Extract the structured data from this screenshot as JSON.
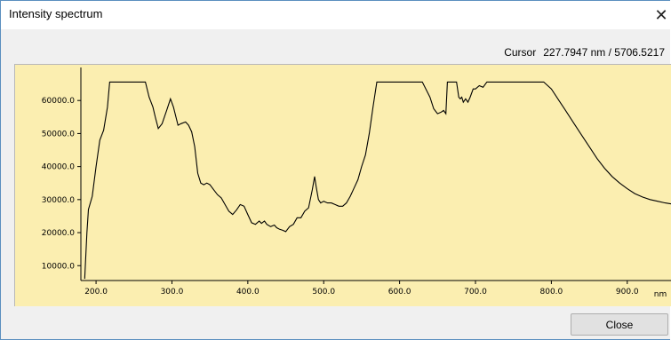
{
  "window": {
    "title": "Intensity spectrum",
    "close_icon": "close-icon",
    "close_glyph": "✕"
  },
  "cursor": {
    "label": "Cursor",
    "value": "227.7947 nm / 5706.5217"
  },
  "buttons": {
    "close_label": "Close"
  },
  "colors": {
    "plot_background": "#fbeeb0",
    "line": "#000000"
  },
  "chart_data": {
    "type": "line",
    "title": "",
    "xlabel": "nm",
    "ylabel": "",
    "xlim": [
      180,
      960
    ],
    "ylim": [
      5500,
      70000
    ],
    "x_ticks": [
      "200.0",
      "300.0",
      "400.0",
      "500.0",
      "600.0",
      "700.0",
      "800.0",
      "900.0"
    ],
    "y_ticks": [
      "10000.0",
      "20000.0",
      "30000.0",
      "40000.0",
      "50000.0",
      "60000.0"
    ],
    "grid": false,
    "series": [
      {
        "x": [
          185,
          188,
          190,
          195,
          200,
          205,
          210,
          215,
          218,
          222,
          230,
          240,
          250,
          260,
          265,
          270,
          275,
          278,
          282,
          287,
          293,
          298,
          302,
          308,
          312,
          318,
          322,
          326,
          330,
          334,
          338,
          342,
          346,
          350,
          355,
          360,
          365,
          370,
          375,
          380,
          385,
          390,
          395,
          400,
          405,
          410,
          415,
          418,
          422,
          425,
          430,
          435,
          438,
          442,
          446,
          450,
          455,
          460,
          465,
          470,
          475,
          480,
          485,
          488,
          490,
          493,
          496,
          500,
          505,
          510,
          515,
          520,
          525,
          530,
          535,
          540,
          545,
          550,
          555,
          560,
          565,
          570,
          575,
          580,
          590,
          600,
          610,
          620,
          630,
          640,
          645,
          650,
          655,
          658,
          661,
          663,
          665,
          670,
          675,
          678,
          680,
          682,
          684,
          687,
          690,
          693,
          697,
          700,
          705,
          710,
          715,
          720,
          730,
          740,
          750,
          760,
          770,
          780,
          790,
          800,
          810,
          820,
          830,
          840,
          850,
          860,
          870,
          880,
          890,
          900,
          910,
          920,
          930,
          940,
          950,
          958
        ],
        "y": [
          6000,
          20000,
          27000,
          31000,
          40000,
          48000,
          51000,
          58000,
          65600,
          65600,
          65600,
          65600,
          65600,
          65600,
          65600,
          61000,
          58000,
          55000,
          51500,
          53000,
          57000,
          60500,
          58000,
          52500,
          53000,
          53500,
          52500,
          50500,
          46000,
          38000,
          35000,
          34500,
          35000,
          34500,
          33000,
          31500,
          30500,
          28500,
          26500,
          25500,
          26800,
          28500,
          28000,
          25500,
          23000,
          22500,
          23500,
          22800,
          23500,
          22500,
          21800,
          22300,
          21500,
          21000,
          20700,
          20300,
          21800,
          22500,
          24500,
          24500,
          26500,
          27500,
          33000,
          37000,
          34000,
          30000,
          29000,
          29500,
          29000,
          29000,
          28500,
          28000,
          28000,
          29000,
          31000,
          33500,
          36000,
          40000,
          43500,
          50000,
          58000,
          65600,
          65600,
          65600,
          65600,
          65600,
          65600,
          65600,
          65600,
          61000,
          57500,
          56000,
          56500,
          57000,
          56000,
          65600,
          65600,
          65600,
          65600,
          61000,
          60500,
          61000,
          59500,
          60500,
          59500,
          61000,
          63500,
          63500,
          64500,
          64000,
          65600,
          65600,
          65600,
          65600,
          65600,
          65600,
          65600,
          65600,
          65600,
          63500,
          60000,
          56500,
          53000,
          49500,
          46000,
          42500,
          39500,
          37000,
          35000,
          33300,
          31800,
          30800,
          30000,
          29500,
          29000,
          28700
        ]
      }
    ]
  }
}
